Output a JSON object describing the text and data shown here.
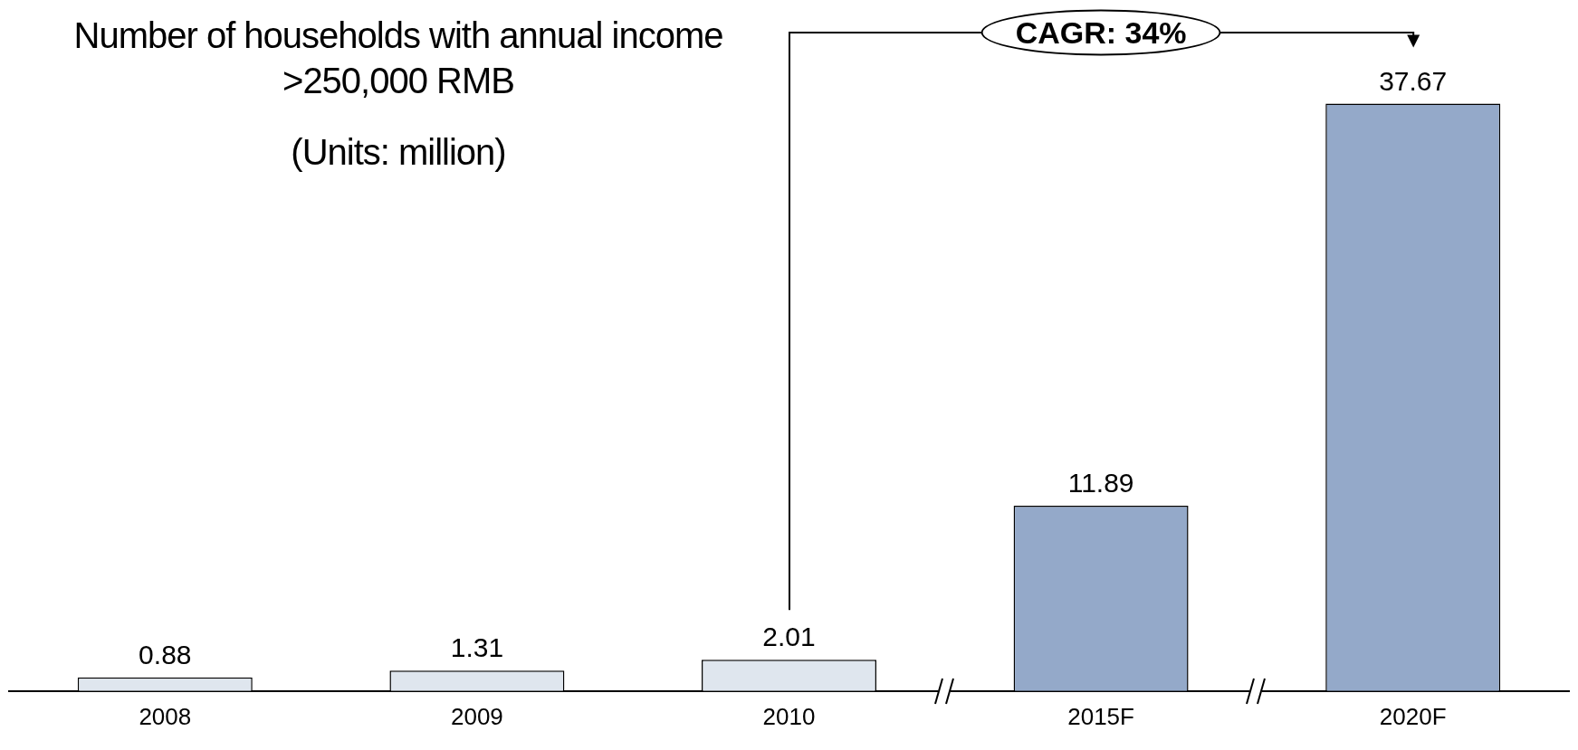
{
  "chart_data": {
    "type": "bar",
    "title": "Number of households with annual income >250,000 RMB",
    "subtitle": "(Units: million)",
    "categories": [
      "2008",
      "2009",
      "2010",
      "2015F",
      "2020F"
    ],
    "values": [
      0.88,
      1.31,
      2.01,
      11.89,
      37.67
    ],
    "colors": [
      "#dfe6ee",
      "#dfe6ee",
      "#dfe6ee",
      "#94a9c9",
      "#94a9c9"
    ],
    "ylim": [
      0,
      42
    ],
    "data_labels": true,
    "grid": false,
    "legend": false,
    "annotations": [
      "CAGR: 34%"
    ]
  }
}
